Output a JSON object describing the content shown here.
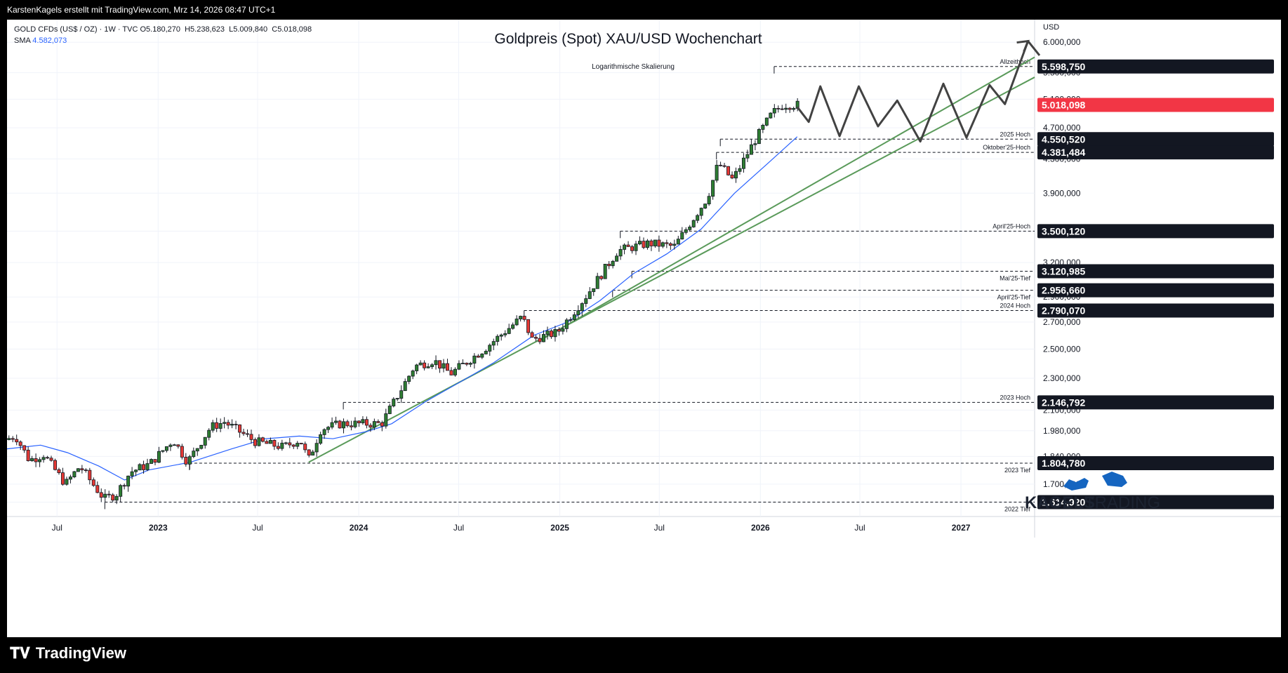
{
  "topbar": {
    "text": "KarstenKagels erstellt mit TradingView.com, Mrz 14, 2026 08:47 UTC+1"
  },
  "legend": {
    "symbol": "GOLD CFDs (US$ / OZ) · 1W · TVC",
    "ohlc": "O5.180,270  H5.238,623  L5.009,840  C5.018,098",
    "sma_label": "SMA",
    "sma_value": "4.582,073"
  },
  "footer": {
    "brand": "TradingView"
  },
  "branding": {
    "line1": "KAGELS",
    "line2": "TRADING"
  },
  "colors": {
    "up": "#26a69a",
    "down": "#ef5350",
    "up_fill": "#2e7d32",
    "down_fill": "#e53935",
    "sma": "#2962ff",
    "trend": "#5a9a5a",
    "projection": "#424242"
  },
  "chart_data": {
    "type": "candlestick",
    "title": "Goldpreis (Spot) XAU/USD Wochenchart",
    "subtitle": "Logarithmische Skalierung",
    "currency": "USD",
    "y_scale": "log",
    "ylim": [
      1550,
      6400
    ],
    "x_range": [
      "2022-04-01",
      "2027-05-15"
    ],
    "x_ticks": [
      {
        "label": "Jul",
        "date": "2022-07-01",
        "bold": false
      },
      {
        "label": "2023",
        "date": "2023-01-01",
        "bold": true
      },
      {
        "label": "Jul",
        "date": "2023-07-01",
        "bold": false
      },
      {
        "label": "2024",
        "date": "2024-01-01",
        "bold": true
      },
      {
        "label": "Jul",
        "date": "2024-07-01",
        "bold": false
      },
      {
        "label": "2025",
        "date": "2025-01-01",
        "bold": true
      },
      {
        "label": "Jul",
        "date": "2025-07-01",
        "bold": false
      },
      {
        "label": "2026",
        "date": "2026-01-01",
        "bold": true
      },
      {
        "label": "Jul",
        "date": "2026-07-01",
        "bold": false
      },
      {
        "label": "2027",
        "date": "2027-01-01",
        "bold": true
      }
    ],
    "y_ticks": [
      {
        "label": "6.000,000",
        "value": 6000
      },
      {
        "label": "5.500,000",
        "value": 5500
      },
      {
        "label": "5.100,000",
        "value": 5100
      },
      {
        "label": "4.700,000",
        "value": 4700
      },
      {
        "label": "4.300,000",
        "value": 4300
      },
      {
        "label": "3.900,000",
        "value": 3900
      },
      {
        "label": "3.500,000",
        "value": 3500
      },
      {
        "label": "3.200,000",
        "value": 3200
      },
      {
        "label": "2.900,000",
        "value": 2900
      },
      {
        "label": "2.700,000",
        "value": 2700
      },
      {
        "label": "2.500,000",
        "value": 2500
      },
      {
        "label": "2.300,000",
        "value": 2300
      },
      {
        "label": "2.100,000",
        "value": 2100
      },
      {
        "label": "1.980,000",
        "value": 1980
      },
      {
        "label": "1.840,000",
        "value": 1840
      },
      {
        "label": "1.700,000",
        "value": 1700
      },
      {
        "label": "1.614,920",
        "value": 1614.92
      }
    ],
    "levels": [
      {
        "label": "Allzeithoch",
        "price_label": "5.598,750",
        "value": 5598.75,
        "start": "2026-01-26"
      },
      {
        "label": "2025 Hoch",
        "price_label": "4.550,520",
        "value": 4550.52,
        "start": "2025-10-20"
      },
      {
        "label": "Oktober'25-Hoch",
        "price_label": "4.381,484",
        "value": 4381.48,
        "start": "2025-10-13"
      },
      {
        "label": "April'25-Hoch",
        "price_label": "3.500,120",
        "value": 3500.12,
        "start": "2025-04-21"
      },
      {
        "label": "Mai'25-Tief",
        "price_label": "3.120,985",
        "value": 3120.99,
        "start": "2025-05-12"
      },
      {
        "label": "April'25-Tief",
        "price_label": "2.956,660",
        "value": 2956.66,
        "start": "2025-04-07"
      },
      {
        "label": "2024 Hoch",
        "price_label": "2.790,070",
        "value": 2790.07,
        "start": "2024-10-28"
      },
      {
        "label": "2023 Hoch",
        "price_label": "2.146,792",
        "value": 2146.79,
        "start": "2023-12-04"
      },
      {
        "label": "2023 Tief",
        "price_label": "1.804,780",
        "value": 1804.78,
        "start": "2023-02-27"
      },
      {
        "label": "2022 Tief",
        "price_label": "1.614,920",
        "value": 1614.92,
        "start": "2022-09-26"
      }
    ],
    "last_price": {
      "label": "5.018,098",
      "value": 5018.1
    },
    "trendlines": [
      {
        "from": {
          "date": "2023-10-02",
          "value": 1810
        },
        "to": {
          "date": "2027-05-15",
          "value": 5430
        }
      },
      {
        "from": {
          "date": "2024-11-25",
          "value": 2560
        },
        "to": {
          "date": "2027-05-15",
          "value": 5750
        }
      }
    ],
    "projection": [
      {
        "date": "2026-03-09",
        "value": 4990
      },
      {
        "date": "2026-03-30",
        "value": 4780
      },
      {
        "date": "2026-04-20",
        "value": 5290
      },
      {
        "date": "2026-05-25",
        "value": 4590
      },
      {
        "date": "2026-06-29",
        "value": 5290
      },
      {
        "date": "2026-08-03",
        "value": 4720
      },
      {
        "date": "2026-09-07",
        "value": 5080
      },
      {
        "date": "2026-10-19",
        "value": 4520
      },
      {
        "date": "2026-11-30",
        "value": 5330
      },
      {
        "date": "2027-01-11",
        "value": 4570
      },
      {
        "date": "2027-02-22",
        "value": 5310
      },
      {
        "date": "2027-03-22",
        "value": 5030
      },
      {
        "date": "2027-05-03",
        "value": 6020
      },
      {
        "date": "2027-05-24",
        "value": 5780
      }
    ],
    "sma_anchors": [
      [
        "2022-04-01",
        1880
      ],
      [
        "2022-06-01",
        1900
      ],
      [
        "2022-07-20",
        1860
      ],
      [
        "2022-09-15",
        1790
      ],
      [
        "2022-11-01",
        1720
      ],
      [
        "2022-12-15",
        1770
      ],
      [
        "2023-03-01",
        1810
      ],
      [
        "2023-05-15",
        1880
      ],
      [
        "2023-07-15",
        1935
      ],
      [
        "2023-09-15",
        1950
      ],
      [
        "2023-11-15",
        1935
      ],
      [
        "2024-01-15",
        1975
      ],
      [
        "2024-03-01",
        2020
      ],
      [
        "2024-05-01",
        2150
      ],
      [
        "2024-07-01",
        2270
      ],
      [
        "2024-09-01",
        2400
      ],
      [
        "2024-11-15",
        2600
      ],
      [
        "2025-01-15",
        2700
      ],
      [
        "2025-03-15",
        2870
      ],
      [
        "2025-05-15",
        3100
      ],
      [
        "2025-07-15",
        3280
      ],
      [
        "2025-09-15",
        3520
      ],
      [
        "2025-11-15",
        3900
      ],
      [
        "2026-01-15",
        4250
      ],
      [
        "2026-03-09",
        4582
      ]
    ],
    "price_anchors": [
      [
        "2022-04-01",
        1930
      ],
      [
        "2022-04-20",
        1950
      ],
      [
        "2022-05-15",
        1820
      ],
      [
        "2022-06-10",
        1850
      ],
      [
        "2022-07-20",
        1700
      ],
      [
        "2022-08-15",
        1790
      ],
      [
        "2022-09-05",
        1710
      ],
      [
        "2022-09-28",
        1630
      ],
      [
        "2022-10-20",
        1650
      ],
      [
        "2022-11-15",
        1760
      ],
      [
        "2022-12-20",
        1800
      ],
      [
        "2023-02-01",
        1930
      ],
      [
        "2023-02-27",
        1810
      ],
      [
        "2023-04-10",
        2000
      ],
      [
        "2023-05-05",
        2030
      ],
      [
        "2023-06-30",
        1920
      ],
      [
        "2023-08-20",
        1890
      ],
      [
        "2023-09-20",
        1930
      ],
      [
        "2023-10-05",
        1820
      ],
      [
        "2023-10-28",
        1990
      ],
      [
        "2023-12-04",
        2020
      ],
      [
        "2024-02-15",
        2020
      ],
      [
        "2024-04-15",
        2380
      ],
      [
        "2024-05-20",
        2420
      ],
      [
        "2024-06-20",
        2330
      ],
      [
        "2024-08-20",
        2500
      ],
      [
        "2024-10-28",
        2740
      ],
      [
        "2024-11-15",
        2570
      ],
      [
        "2024-12-31",
        2620
      ],
      [
        "2025-02-20",
        2900
      ],
      [
        "2025-04-20",
        3310
      ],
      [
        "2025-06-15",
        3380
      ],
      [
        "2025-08-01",
        3350
      ],
      [
        "2025-09-30",
        3850
      ],
      [
        "2025-10-20",
        4250
      ],
      [
        "2025-11-15",
        4050
      ],
      [
        "2025-12-25",
        4530
      ],
      [
        "2026-01-26",
        4900
      ],
      [
        "2026-02-15",
        5020
      ],
      [
        "2026-03-09",
        5018
      ]
    ]
  }
}
